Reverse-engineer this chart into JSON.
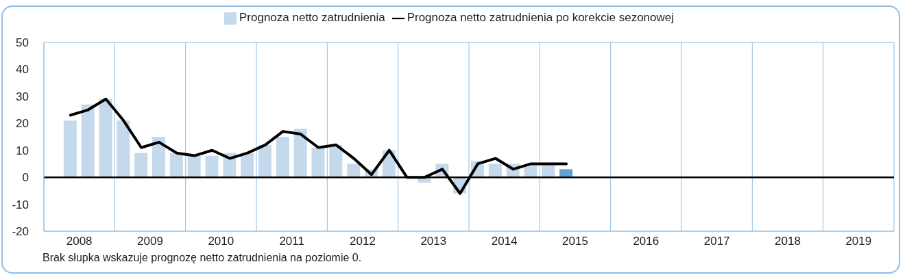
{
  "chart_data": {
    "type": "bar",
    "x": [
      2008.375,
      2008.625,
      2008.875,
      2009.125,
      2009.375,
      2009.625,
      2009.875,
      2010.125,
      2010.375,
      2010.625,
      2010.875,
      2011.125,
      2011.375,
      2011.625,
      2011.875,
      2012.125,
      2012.375,
      2012.625,
      2012.875,
      2013.125,
      2013.375,
      2013.625,
      2013.875,
      2014.125,
      2014.375,
      2014.625,
      2014.875,
      2015.125,
      2015.375
    ],
    "series": [
      {
        "name": "Prognoza netto zatrudnienia",
        "color": "#c5d9ed",
        "colors": [
          "#c5d9ed",
          "#c5d9ed",
          "#c5d9ed",
          "#c5d9ed",
          "#c5d9ed",
          "#c5d9ed",
          "#c5d9ed",
          "#c5d9ed",
          "#c5d9ed",
          "#c5d9ed",
          "#c5d9ed",
          "#c5d9ed",
          "#c5d9ed",
          "#c5d9ed",
          "#c5d9ed",
          "#c5d9ed",
          "#c5d9ed",
          "#c5d9ed",
          "#c5d9ed",
          "#c5d9ed",
          "#c5d9ed",
          "#c5d9ed",
          "#c5d9ed",
          "#c5d9ed",
          "#c5d9ed",
          "#c5d9ed",
          "#c5d9ed",
          "#c5d9ed",
          "#5fa3d6"
        ],
        "values": [
          21,
          27,
          29,
          21,
          9,
          15,
          9,
          8,
          8,
          9,
          9,
          12,
          15,
          18,
          11,
          12,
          5,
          3,
          10,
          0,
          -2,
          5,
          -6,
          6,
          5,
          5,
          5,
          5,
          3
        ]
      },
      {
        "name": "Prognoza netto zatrudnienia po korekcie sezonowej",
        "type": "line",
        "color": "#000000",
        "values": [
          23,
          25,
          29,
          21,
          11,
          13,
          9,
          8,
          10,
          7,
          9,
          12,
          17,
          16,
          11,
          12,
          7,
          1,
          10,
          0,
          0,
          3,
          -6,
          5,
          7,
          3,
          5,
          5,
          5
        ]
      }
    ],
    "xlim": [
      2008,
      2020
    ],
    "xticks": [
      {
        "value": 2008,
        "label": null
      },
      {
        "value": 2008.5,
        "label": "2008"
      },
      {
        "value": 2009,
        "label": null
      },
      {
        "value": 2009.5,
        "label": "2009"
      },
      {
        "value": 2010,
        "label": null
      },
      {
        "value": 2010.5,
        "label": "2010"
      },
      {
        "value": 2011,
        "label": null
      },
      {
        "value": 2011.5,
        "label": "2011"
      },
      {
        "value": 2012,
        "label": null
      },
      {
        "value": 2012.5,
        "label": "2012"
      },
      {
        "value": 2013,
        "label": null
      },
      {
        "value": 2013.5,
        "label": "2013"
      },
      {
        "value": 2014,
        "label": null
      },
      {
        "value": 2014.5,
        "label": "2014"
      },
      {
        "value": 2015,
        "label": null
      },
      {
        "value": 2015.5,
        "label": "2015"
      },
      {
        "value": 2016,
        "label": null
      },
      {
        "value": 2016.5,
        "label": "2016"
      },
      {
        "value": 2017,
        "label": null
      },
      {
        "value": 2017.5,
        "label": "2017"
      },
      {
        "value": 2018,
        "label": null
      },
      {
        "value": 2018.5,
        "label": "2018"
      },
      {
        "value": 2019,
        "label": null
      },
      {
        "value": 2019.5,
        "label": "2019"
      },
      {
        "value": 2020,
        "label": null
      }
    ],
    "ylim": [
      -20,
      50
    ],
    "yticks": [
      -20,
      -10,
      0,
      10,
      20,
      30,
      40,
      50
    ],
    "grid": true,
    "legend": "top",
    "ref_lines": [
      {
        "axis": "y",
        "value": 0,
        "color": "#000000"
      }
    ],
    "annotations": [
      "Brak słupka wskazuje prognozę netto zatrudnienia na poziomie 0."
    ]
  }
}
